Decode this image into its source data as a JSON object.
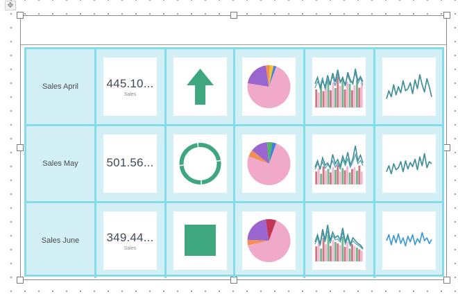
{
  "colors": {
    "tablix_border": "#86dbeb",
    "tablix_fill": "#d3f0f6",
    "indicator_green": "#3fa77f",
    "line_teal": "#3f8d9a",
    "line_blue": "#3c9bd6",
    "bar_red": "#c2606b",
    "bar_pink": "#f0a9c8",
    "bar_green": "#5aaa7c",
    "pie_pink": "#f0a9c8",
    "pie_purple": "#9b65d0",
    "pie_orange": "#f29053",
    "pie_blue": "#3d82d6",
    "pie_yellow": "#f2c23a",
    "pie_green": "#57b36b",
    "pie_crimson": "#c2365a"
  },
  "rows": [
    {
      "label": "Sales April",
      "kpi_value": "445.10...",
      "kpi_caption": "Sales",
      "indicator": "up-arrow-icon",
      "pie": [
        {
          "name": "pink",
          "value": 0.72
        },
        {
          "name": "purple",
          "value": 0.2
        },
        {
          "name": "orange",
          "value": 0.03
        },
        {
          "name": "yellow",
          "value": 0.03
        },
        {
          "name": "blue",
          "value": 0.02
        }
      ],
      "combo_bars": [
        0.42,
        0.35,
        0.55,
        0.38,
        0.48,
        0.62,
        0.4,
        0.58,
        0.45,
        0.72,
        0.5,
        0.68,
        0.42,
        0.6,
        0.55,
        0.4,
        0.52,
        0.64,
        0.46,
        0.58
      ],
      "combo_line_a": [
        0.55,
        0.7,
        0.45,
        0.62,
        0.48,
        0.75,
        0.52,
        0.8,
        0.6,
        0.88,
        0.58,
        0.7,
        0.5,
        0.82,
        0.64,
        0.55,
        0.9,
        0.62,
        0.72,
        0.6
      ],
      "combo_line_b": [
        0.45,
        0.6,
        0.5,
        0.7,
        0.42,
        0.65,
        0.58,
        0.72,
        0.5,
        0.78,
        0.62,
        0.66,
        0.55,
        0.75,
        0.58,
        0.62,
        0.8,
        0.55,
        0.68,
        0.52
      ],
      "sparkline": [
        0.25,
        0.45,
        0.3,
        0.6,
        0.35,
        0.55,
        0.4,
        0.7,
        0.45,
        0.5,
        0.65,
        0.38,
        0.72,
        0.5,
        0.85,
        0.6,
        0.42,
        0.75,
        0.55,
        0.3
      ],
      "spark_color": "line_teal"
    },
    {
      "label": "Sales May",
      "kpi_value": "501.56...",
      "kpi_caption": "",
      "indicator": "ring-icon",
      "pie": [
        {
          "name": "pink",
          "value": 0.75
        },
        {
          "name": "orange",
          "value": 0.05
        },
        {
          "name": "purple",
          "value": 0.13
        },
        {
          "name": "green",
          "value": 0.04
        },
        {
          "name": "blue",
          "value": 0.03
        }
      ],
      "combo_bars": [
        0.3,
        0.38,
        0.25,
        0.42,
        0.32,
        0.36,
        0.28,
        0.4,
        0.34,
        0.45,
        0.3,
        0.38,
        0.33,
        0.42,
        0.28,
        0.36,
        0.4,
        0.32,
        0.44,
        0.3
      ],
      "combo_line_a": [
        0.4,
        0.55,
        0.35,
        0.62,
        0.45,
        0.5,
        0.38,
        0.7,
        0.48,
        0.58,
        0.42,
        0.66,
        0.5,
        0.75,
        0.45,
        0.6,
        0.9,
        0.55,
        0.68,
        0.5
      ],
      "combo_line_b": [
        0.35,
        0.48,
        0.4,
        0.52,
        0.38,
        0.46,
        0.42,
        0.55,
        0.4,
        0.5,
        0.36,
        0.58,
        0.44,
        0.6,
        0.4,
        0.52,
        0.7,
        0.48,
        0.56,
        0.44
      ],
      "sparkline": [
        0.35,
        0.5,
        0.3,
        0.55,
        0.4,
        0.45,
        0.6,
        0.35,
        0.62,
        0.42,
        0.58,
        0.48,
        0.66,
        0.4,
        0.72,
        0.5,
        0.8,
        0.45,
        0.6,
        0.55
      ],
      "spark_color": "line_teal"
    },
    {
      "label": "Sales June",
      "kpi_value": "349.44...",
      "kpi_caption": "Sales",
      "indicator": "square-icon",
      "pie": [
        {
          "name": "pink",
          "value": 0.66
        },
        {
          "name": "orange",
          "value": 0.04
        },
        {
          "name": "purple",
          "value": 0.22
        },
        {
          "name": "crimson",
          "value": 0.08
        }
      ],
      "combo_bars": [
        0.35,
        0.48,
        0.3,
        0.55,
        0.4,
        0.62,
        0.36,
        0.5,
        0.45,
        0.42,
        0.38,
        0.58,
        0.34,
        0.46,
        0.3,
        0.4,
        0.36,
        0.32,
        0.28,
        0.25
      ],
      "combo_line_a": [
        0.45,
        0.62,
        0.4,
        0.75,
        0.5,
        0.85,
        0.48,
        0.68,
        0.55,
        0.6,
        0.5,
        0.78,
        0.45,
        0.62,
        0.4,
        0.55,
        0.48,
        0.42,
        0.38,
        0.3
      ],
      "combo_line_b": [
        0.4,
        0.55,
        0.36,
        0.66,
        0.45,
        0.72,
        0.42,
        0.6,
        0.5,
        0.52,
        0.45,
        0.68,
        0.4,
        0.55,
        0.36,
        0.48,
        0.42,
        0.38,
        0.34,
        0.28
      ],
      "sparkline": [
        0.55,
        0.7,
        0.45,
        0.68,
        0.5,
        0.72,
        0.48,
        0.62,
        0.42,
        0.66,
        0.52,
        0.7,
        0.45,
        0.6,
        0.5,
        0.75,
        0.55,
        0.62,
        0.48,
        0.58
      ],
      "spark_color": "line_blue"
    }
  ]
}
